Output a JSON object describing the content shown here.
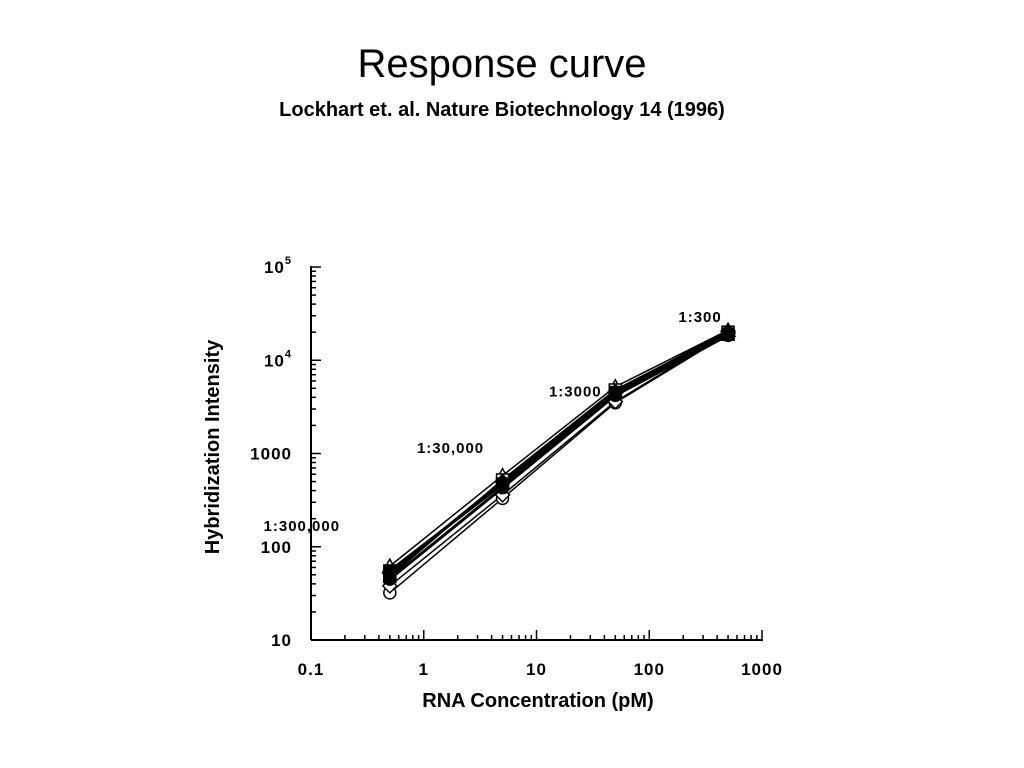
{
  "slide": {
    "title": "Response curve",
    "subtitle": "Lockhart et. al. Nature Biotechnology 14 (1996)"
  },
  "chart_data": {
    "type": "line",
    "title": "",
    "xlabel": "RNA Concentration (pM)",
    "ylabel": "Hybridization Intensity",
    "x_scale": "log",
    "y_scale": "log",
    "xlim": [
      0.1,
      1000
    ],
    "ylim": [
      10,
      100000
    ],
    "grid": false,
    "x_tick_labels": [
      "0.1",
      "1",
      "10",
      "100",
      "1000"
    ],
    "y_ticks": [
      {
        "base": "10",
        "exp": "5"
      },
      {
        "base": "10",
        "exp": "4"
      },
      {
        "base": "1000",
        "exp": ""
      },
      {
        "base": "100",
        "exp": ""
      },
      {
        "base": "10",
        "exp": ""
      }
    ],
    "x": [
      0.5,
      5,
      50,
      500
    ],
    "series": [
      {
        "marker": "circle",
        "values": [
          32,
          330,
          3500,
          19000
        ]
      },
      {
        "marker": "diamond",
        "values": [
          38,
          360,
          3600,
          19500
        ]
      },
      {
        "marker": "triangle",
        "values": [
          62,
          580,
          5200,
          21000
        ]
      },
      {
        "marker": "square",
        "values": [
          48,
          520,
          4800,
          20000
        ]
      },
      {
        "marker": "square-filled",
        "values": [
          55,
          470,
          4500,
          19000
        ]
      },
      {
        "marker": "circle-filled",
        "values": [
          45,
          430,
          4200,
          18500
        ]
      },
      {
        "marker": "diamond-filled",
        "values": [
          52,
          500,
          4600,
          20500
        ]
      }
    ],
    "annotations": [
      {
        "text": "1:300,000",
        "x": 0.5
      },
      {
        "text": "1:30,000",
        "x": 5
      },
      {
        "text": "1:3000",
        "x": 50
      },
      {
        "text": "1:300",
        "x": 500
      }
    ]
  }
}
